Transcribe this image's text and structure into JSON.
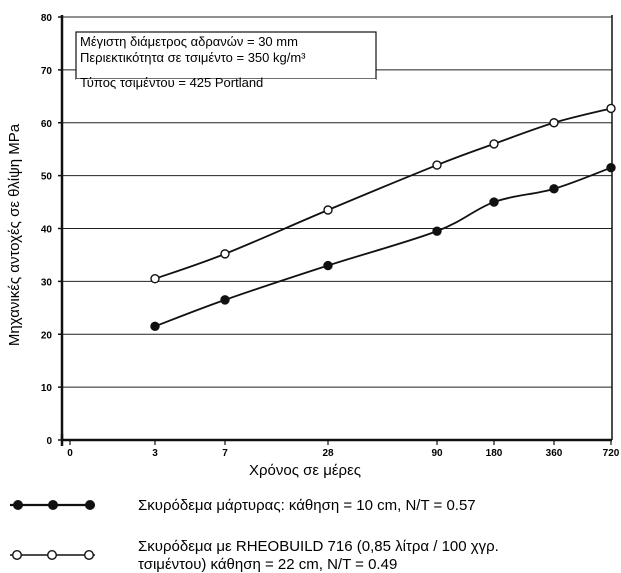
{
  "chart_data": {
    "type": "line",
    "x_tick_labels": [
      "0",
      "3",
      "7",
      "28",
      "90",
      "180",
      "360",
      "720"
    ],
    "x_label": "Χρόνος σε μέρες",
    "y_label": "Μηχανικές αντοχές σε θλίψη MPa",
    "ylim": [
      0,
      80
    ],
    "y_ticks": [
      0,
      10,
      20,
      30,
      40,
      50,
      60,
      70,
      80
    ],
    "grid": "horizontal",
    "info_box": {
      "line1": "Μέγιστη διάμετρος αδρανών = 30 mm",
      "line2": "Περιεκτικότητα σε τσιμέντο = 350 kg/m³",
      "line3": "Τύπος τσιμέντου = 425 Portland"
    },
    "series": [
      {
        "name": "Σκυρόδεμα μάρτυρας: κάθηση = 10 cm, N/T = 0.57",
        "marker": "filled",
        "x": [
          "3",
          "7",
          "28",
          "90",
          "180",
          "360",
          "720"
        ],
        "values": [
          21.5,
          26.5,
          33,
          39.5,
          45,
          47.5,
          51.5
        ]
      },
      {
        "name": "Σκυρόδεμα με RHEOBUILD 716 (0,85 λίτρα / 100 χγρ. τσιμέντου) κάθηση = 22 cm, N/T = 0.49",
        "name_line1": "Σκυρόδεμα με RHEOBUILD 716 (0,85 λίτρα / 100 χγρ.",
        "name_line2": "τσιμέντου) κάθηση = 22 cm, N/T = 0.49",
        "marker": "open",
        "x": [
          "3",
          "7",
          "28",
          "90",
          "180",
          "360",
          "720"
        ],
        "values": [
          30.5,
          35.2,
          43.5,
          52,
          56,
          60,
          62.7
        ]
      }
    ]
  }
}
